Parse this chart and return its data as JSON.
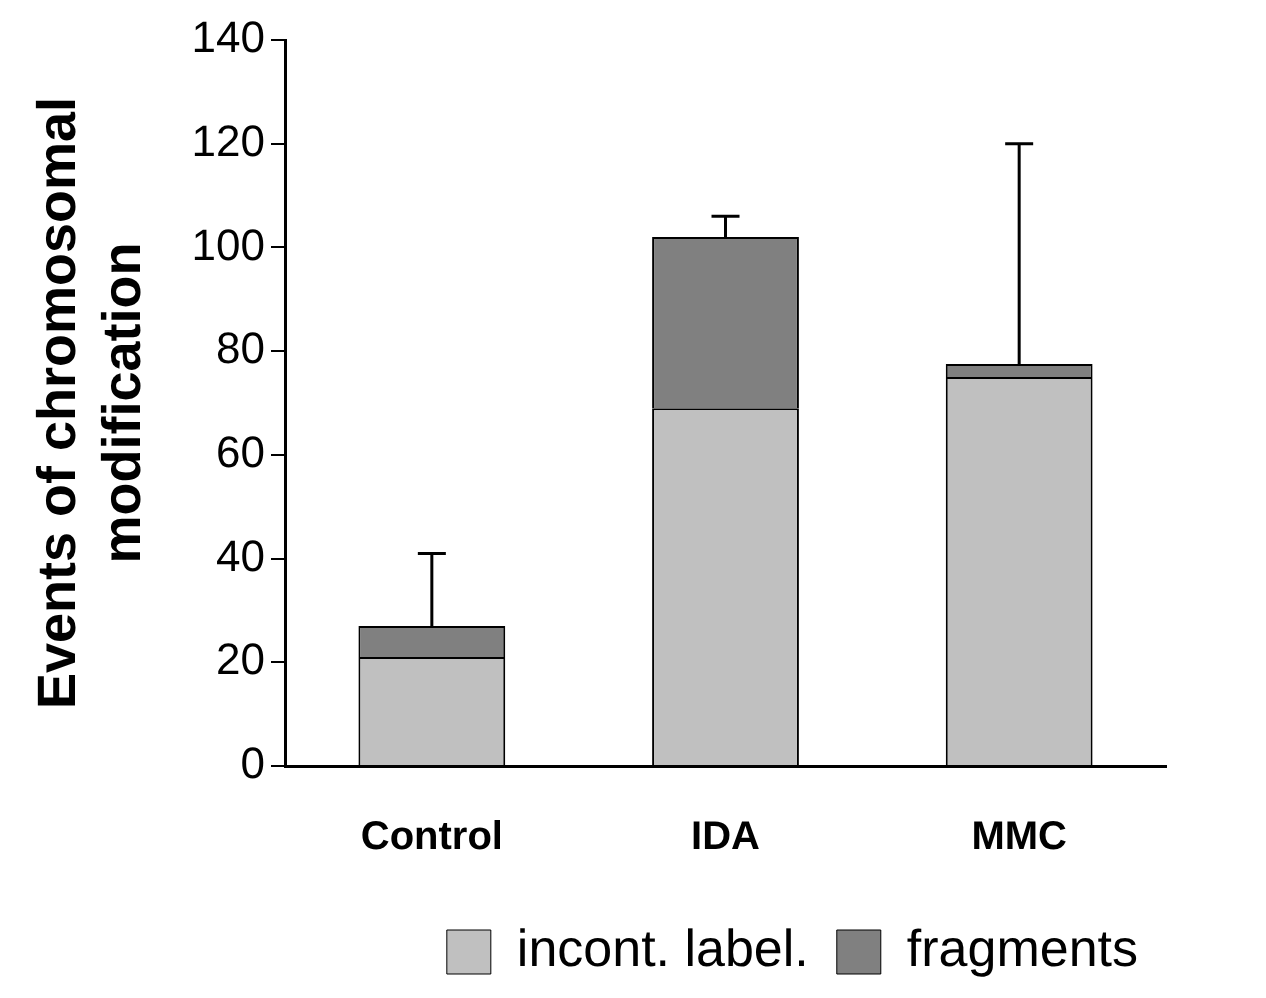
{
  "chart_data": {
    "type": "bar",
    "stacked": true,
    "ylabel": "Events of chromosomal\nmodification",
    "categories": [
      "Control",
      "IDA",
      "MMC"
    ],
    "series": [
      {
        "name": "incont. label.",
        "color": "#c0c0c0",
        "values": [
          21,
          69,
          75
        ]
      },
      {
        "name": "fragments",
        "color": "#808080",
        "values": [
          6,
          33,
          2.5
        ],
        "errors": [
          14,
          4,
          42.5
        ]
      }
    ],
    "ylim": [
      0,
      140
    ],
    "yticks": [
      0,
      20,
      40,
      60,
      80,
      100,
      120,
      140
    ],
    "grid": false,
    "legend": "bottom"
  }
}
